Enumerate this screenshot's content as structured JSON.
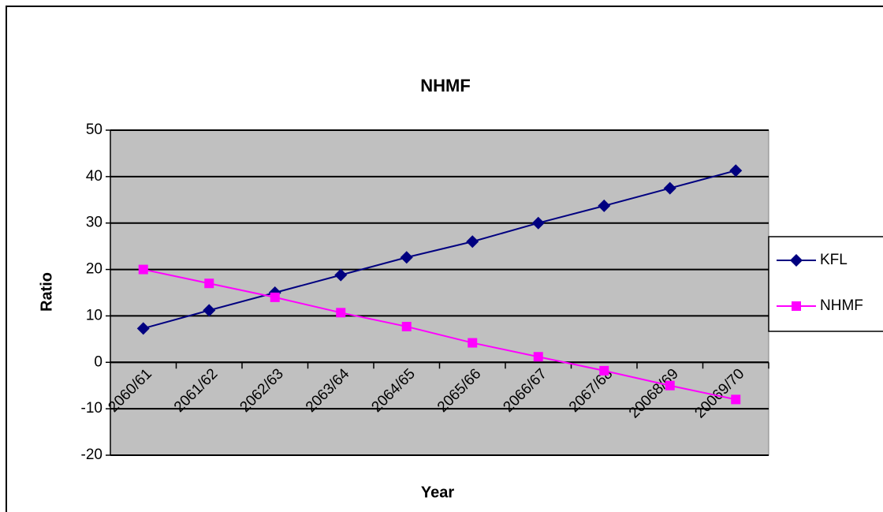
{
  "chart_data": {
    "type": "line",
    "title": "NHMF",
    "x_label": "Year",
    "y_label": "Ratio",
    "categories": [
      "2060/61",
      "2061/62",
      "2062/63",
      "2063/64",
      "2064/65",
      "2065/66",
      "2066/67",
      "2067/68",
      "20068/69",
      "20069/70"
    ],
    "series": [
      {
        "name": "KFL",
        "color": "#000080",
        "marker": "diamond",
        "values": [
          7.3,
          11.2,
          15,
          18.8,
          22.6,
          26,
          30,
          33.7,
          37.5,
          41.3
        ]
      },
      {
        "name": "NHMF",
        "color": "#ff00ff",
        "marker": "square",
        "values": [
          20,
          17,
          14,
          10.7,
          7.7,
          4.2,
          1.2,
          -1.8,
          -5,
          -8
        ]
      }
    ],
    "ylim": [
      -20,
      50
    ],
    "yticks": [
      -20,
      -10,
      0,
      10,
      20,
      30,
      40,
      50
    ],
    "grid": true,
    "legend": "right"
  }
}
